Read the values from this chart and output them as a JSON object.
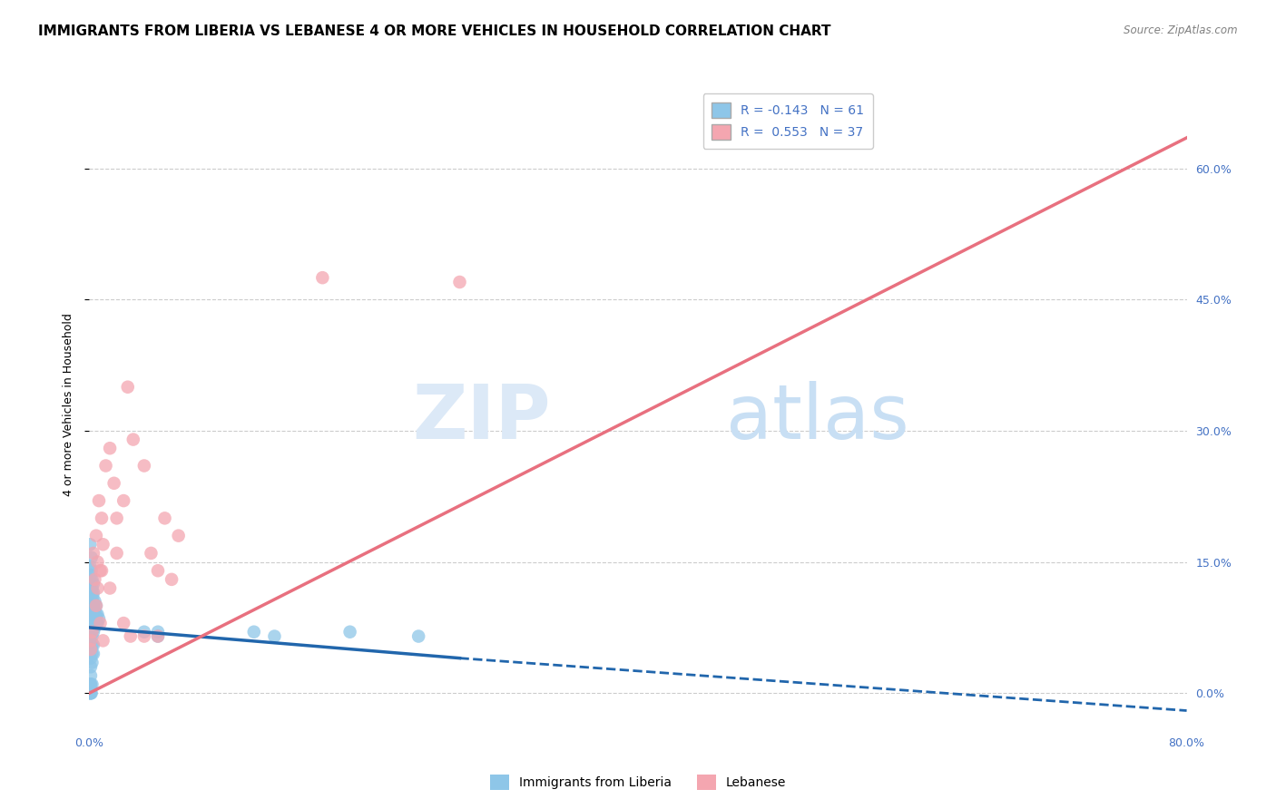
{
  "title": "IMMIGRANTS FROM LIBERIA VS LEBANESE 4 OR MORE VEHICLES IN HOUSEHOLD CORRELATION CHART",
  "source": "Source: ZipAtlas.com",
  "ylabel": "4 or more Vehicles in Household",
  "xlim": [
    0.0,
    0.8
  ],
  "ylim": [
    -0.04,
    0.7
  ],
  "xticks": [
    0.0,
    0.1,
    0.2,
    0.3,
    0.4,
    0.5,
    0.6,
    0.7,
    0.8
  ],
  "xticklabels": [
    "0.0%",
    "",
    "",
    "",
    "",
    "",
    "",
    "",
    "80.0%"
  ],
  "ytick_positions": [
    0.0,
    0.15,
    0.3,
    0.45,
    0.6
  ],
  "right_ytick_labels": [
    "0.0%",
    "15.0%",
    "30.0%",
    "45.0%",
    "60.0%"
  ],
  "legend_R1": "-0.143",
  "legend_N1": "61",
  "legend_R2": "0.553",
  "legend_N2": "37",
  "color_blue": "#8ec6e8",
  "color_pink": "#f4a6b0",
  "color_blue_line": "#2166ac",
  "color_pink_line": "#e8707f",
  "color_blue_text": "#4472c4",
  "watermark_color": "#dce9f7",
  "background_color": "#ffffff",
  "grid_color": "#cccccc",
  "lib_line_solid": [
    [
      0.0,
      0.075
    ],
    [
      0.27,
      0.04
    ]
  ],
  "lib_line_dashed": [
    [
      0.27,
      0.04
    ],
    [
      0.8,
      -0.02
    ]
  ],
  "leb_line": [
    [
      0.0,
      0.0
    ],
    [
      0.8,
      0.635
    ]
  ],
  "liberia_points": [
    [
      0.0005,
      0.145
    ],
    [
      0.0005,
      0.17
    ],
    [
      0.001,
      0.135
    ],
    [
      0.001,
      0.125
    ],
    [
      0.001,
      0.105
    ],
    [
      0.001,
      0.095
    ],
    [
      0.001,
      0.085
    ],
    [
      0.0015,
      0.155
    ],
    [
      0.0015,
      0.14
    ],
    [
      0.002,
      0.13
    ],
    [
      0.002,
      0.12
    ],
    [
      0.002,
      0.115
    ],
    [
      0.002,
      0.105
    ],
    [
      0.002,
      0.095
    ],
    [
      0.002,
      0.085
    ],
    [
      0.0025,
      0.11
    ],
    [
      0.003,
      0.125
    ],
    [
      0.003,
      0.115
    ],
    [
      0.003,
      0.1
    ],
    [
      0.003,
      0.09
    ],
    [
      0.003,
      0.08
    ],
    [
      0.003,
      0.07
    ],
    [
      0.004,
      0.105
    ],
    [
      0.004,
      0.095
    ],
    [
      0.004,
      0.085
    ],
    [
      0.004,
      0.075
    ],
    [
      0.005,
      0.1
    ],
    [
      0.005,
      0.09
    ],
    [
      0.005,
      0.08
    ],
    [
      0.006,
      0.09
    ],
    [
      0.006,
      0.08
    ],
    [
      0.007,
      0.085
    ],
    [
      0.001,
      0.07
    ],
    [
      0.001,
      0.06
    ],
    [
      0.001,
      0.05
    ],
    [
      0.001,
      0.04
    ],
    [
      0.001,
      0.03
    ],
    [
      0.001,
      0.02
    ],
    [
      0.001,
      0.01
    ],
    [
      0.001,
      0.005
    ],
    [
      0.001,
      0.0
    ],
    [
      0.0005,
      0.0
    ],
    [
      0.0005,
      0.005
    ],
    [
      0.0005,
      0.01
    ],
    [
      0.002,
      0.065
    ],
    [
      0.002,
      0.055
    ],
    [
      0.002,
      0.045
    ],
    [
      0.002,
      0.035
    ],
    [
      0.003,
      0.055
    ],
    [
      0.003,
      0.045
    ],
    [
      0.12,
      0.07
    ],
    [
      0.135,
      0.065
    ],
    [
      0.19,
      0.07
    ],
    [
      0.24,
      0.065
    ],
    [
      0.04,
      0.07
    ],
    [
      0.05,
      0.065
    ],
    [
      0.05,
      0.07
    ],
    [
      0.001,
      0.01
    ],
    [
      0.001,
      0.0
    ],
    [
      0.0015,
      0.0
    ],
    [
      0.002,
      0.01
    ]
  ],
  "lebanese_points": [
    [
      0.001,
      0.06
    ],
    [
      0.002,
      0.07
    ],
    [
      0.003,
      0.16
    ],
    [
      0.004,
      0.13
    ],
    [
      0.005,
      0.18
    ],
    [
      0.006,
      0.15
    ],
    [
      0.007,
      0.22
    ],
    [
      0.008,
      0.14
    ],
    [
      0.009,
      0.2
    ],
    [
      0.01,
      0.17
    ],
    [
      0.012,
      0.26
    ],
    [
      0.015,
      0.28
    ],
    [
      0.018,
      0.24
    ],
    [
      0.02,
      0.2
    ],
    [
      0.025,
      0.22
    ],
    [
      0.028,
      0.35
    ],
    [
      0.032,
      0.29
    ],
    [
      0.04,
      0.26
    ],
    [
      0.045,
      0.16
    ],
    [
      0.05,
      0.14
    ],
    [
      0.055,
      0.2
    ],
    [
      0.06,
      0.13
    ],
    [
      0.065,
      0.18
    ],
    [
      0.005,
      0.1
    ],
    [
      0.006,
      0.12
    ],
    [
      0.008,
      0.08
    ],
    [
      0.009,
      0.14
    ],
    [
      0.01,
      0.06
    ],
    [
      0.015,
      0.12
    ],
    [
      0.02,
      0.16
    ],
    [
      0.025,
      0.08
    ],
    [
      0.03,
      0.065
    ],
    [
      0.04,
      0.065
    ],
    [
      0.05,
      0.065
    ],
    [
      0.17,
      0.475
    ],
    [
      0.27,
      0.47
    ],
    [
      0.001,
      0.05
    ]
  ],
  "title_fontsize": 11,
  "axis_label_fontsize": 9,
  "tick_fontsize": 9,
  "legend_fontsize": 10
}
